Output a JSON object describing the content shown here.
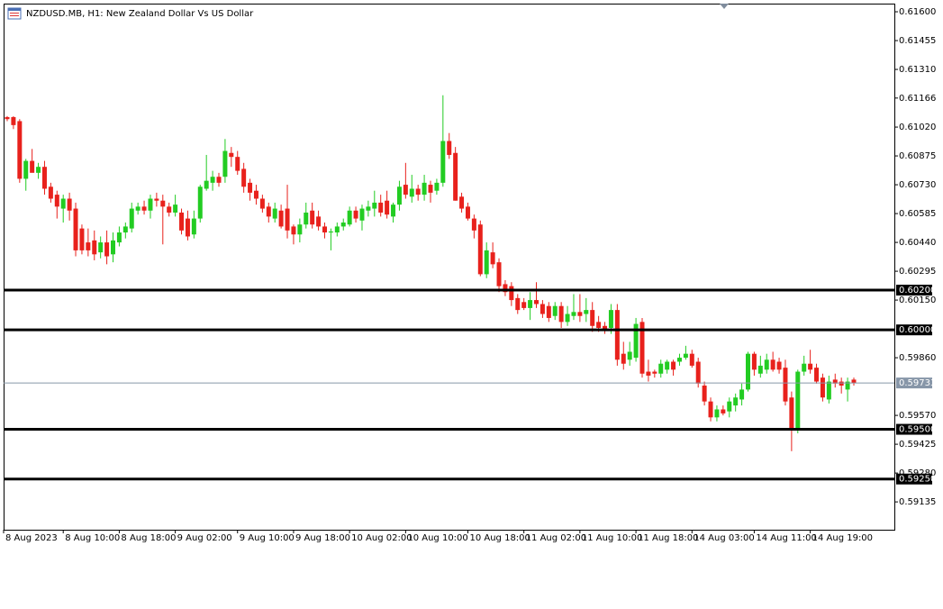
{
  "chart_data": {
    "type": "candlestick",
    "title": "NZDUSD.MB, H1:  New Zealand Dollar Vs US Dollar",
    "up_color": "#22cc22",
    "down_color": "#e8211c",
    "ylim": [
      0.58995,
      0.61641
    ],
    "yticks": [
      {
        "value": 0.616,
        "label": "0.61600"
      },
      {
        "value": 0.61455,
        "label": "0.61455"
      },
      {
        "value": 0.6131,
        "label": "0.61310"
      },
      {
        "value": 0.61166,
        "label": "0.61166"
      },
      {
        "value": 0.6102,
        "label": "0.61020"
      },
      {
        "value": 0.60875,
        "label": "0.60875"
      },
      {
        "value": 0.6073,
        "label": "0.60730"
      },
      {
        "value": 0.60585,
        "label": "0.60585"
      },
      {
        "value": 0.6044,
        "label": "0.60440"
      },
      {
        "value": 0.60295,
        "label": "0.60295"
      },
      {
        "value": 0.6015,
        "label": "0.60150"
      },
      {
        "value": 0.5986,
        "label": "0.59860"
      },
      {
        "value": 0.5957,
        "label": "0.59570"
      },
      {
        "value": 0.59425,
        "label": "0.59425"
      },
      {
        "value": 0.5928,
        "label": "0.59280"
      },
      {
        "value": 0.59135,
        "label": "0.59135"
      }
    ],
    "levels": [
      {
        "value": 0.602,
        "label": "0.60200"
      },
      {
        "value": 0.6,
        "label": "0.60000"
      },
      {
        "value": 0.595,
        "label": "0.59500"
      },
      {
        "value": 0.5925,
        "label": "0.59250"
      }
    ],
    "last_price": {
      "value": 0.59733,
      "label": "0.59733"
    },
    "categories": [
      "8 Aug 2023",
      null,
      null,
      null,
      null,
      null,
      null,
      null,
      null,
      "8 Aug 10:00",
      null,
      null,
      null,
      null,
      null,
      null,
      null,
      null,
      "8 Aug 18:00",
      null,
      null,
      null,
      null,
      null,
      null,
      null,
      null,
      "9 Aug 02:00",
      null,
      null,
      null,
      null,
      null,
      null,
      null,
      null,
      null,
      "9 Aug 10:00",
      null,
      null,
      null,
      null,
      null,
      null,
      null,
      null,
      "9 Aug 18:00",
      null,
      null,
      null,
      null,
      null,
      null,
      null,
      null,
      "10 Aug 02:00",
      null,
      null,
      null,
      null,
      null,
      null,
      null,
      null,
      "10 Aug 10:00",
      null,
      null,
      null,
      null,
      null,
      null,
      null,
      null,
      null,
      "10 Aug 18:00",
      null,
      null,
      null,
      null,
      null,
      null,
      null,
      null,
      "11 Aug 02:00",
      null,
      null,
      null,
      null,
      null,
      null,
      null,
      null,
      "11 Aug 10:00",
      null,
      null,
      null,
      null,
      null,
      null,
      null,
      null,
      "11 Aug 18:00",
      null,
      null,
      null,
      null,
      null,
      null,
      null,
      null,
      "14 Aug 03:00",
      null,
      null,
      null,
      null,
      null,
      null,
      null,
      null,
      null,
      "14 Aug 11:00",
      null,
      null,
      null,
      null,
      null,
      null,
      null,
      null,
      "14 Aug 19:00",
      null,
      null,
      null,
      null,
      null,
      null,
      null
    ],
    "candles": [
      [
        0.6107,
        0.61075,
        0.6105,
        0.6106
      ],
      [
        0.6107,
        0.61075,
        0.6101,
        0.6103
      ],
      [
        0.6105,
        0.6106,
        0.6074,
        0.6076
      ],
      [
        0.6076,
        0.6086,
        0.607,
        0.6085
      ],
      [
        0.6085,
        0.6091,
        0.608,
        0.6079
      ],
      [
        0.6079,
        0.6084,
        0.6076,
        0.6082
      ],
      [
        0.6082,
        0.6085,
        0.6068,
        0.6071
      ],
      [
        0.6072,
        0.6074,
        0.6064,
        0.6066
      ],
      [
        0.6068,
        0.607,
        0.6056,
        0.6062
      ],
      [
        0.6061,
        0.6068,
        0.6054,
        0.6066
      ],
      [
        0.6066,
        0.6069,
        0.6055,
        0.606
      ],
      [
        0.6061,
        0.6064,
        0.6037,
        0.604
      ],
      [
        0.6051,
        0.6053,
        0.6038,
        0.604
      ],
      [
        0.6044,
        0.6051,
        0.6037,
        0.604
      ],
      [
        0.6045,
        0.605,
        0.6035,
        0.6038
      ],
      [
        0.6039,
        0.6047,
        0.6036,
        0.6044
      ],
      [
        0.6044,
        0.605,
        0.6033,
        0.6037
      ],
      [
        0.6038,
        0.6049,
        0.6034,
        0.6045
      ],
      [
        0.6044,
        0.6052,
        0.6042,
        0.6049
      ],
      [
        0.6049,
        0.6054,
        0.6046,
        0.6052
      ],
      [
        0.6051,
        0.6064,
        0.6049,
        0.6061
      ],
      [
        0.606,
        0.6064,
        0.6058,
        0.6062
      ],
      [
        0.6062,
        0.6065,
        0.6058,
        0.606
      ],
      [
        0.606,
        0.6068,
        0.6056,
        0.6066
      ],
      [
        0.6066,
        0.6069,
        0.6062,
        0.6065
      ],
      [
        0.6065,
        0.6068,
        0.6043,
        0.6062
      ],
      [
        0.6062,
        0.6064,
        0.6057,
        0.6059
      ],
      [
        0.6059,
        0.6068,
        0.6057,
        0.6063
      ],
      [
        0.6059,
        0.6061,
        0.6048,
        0.605
      ],
      [
        0.6056,
        0.606,
        0.6045,
        0.6047
      ],
      [
        0.6048,
        0.606,
        0.6046,
        0.6056
      ],
      [
        0.6056,
        0.6073,
        0.6054,
        0.6072
      ],
      [
        0.6071,
        0.6088,
        0.607,
        0.6075
      ],
      [
        0.6074,
        0.608,
        0.607,
        0.6077
      ],
      [
        0.6077,
        0.6079,
        0.6072,
        0.6074
      ],
      [
        0.6077,
        0.6096,
        0.6074,
        0.609
      ],
      [
        0.6089,
        0.6092,
        0.6082,
        0.6087
      ],
      [
        0.6087,
        0.609,
        0.6078,
        0.608
      ],
      [
        0.6081,
        0.6084,
        0.6069,
        0.6072
      ],
      [
        0.6074,
        0.6076,
        0.6065,
        0.6069
      ],
      [
        0.607,
        0.6073,
        0.6063,
        0.6066
      ],
      [
        0.6066,
        0.6068,
        0.6059,
        0.6061
      ],
      [
        0.6062,
        0.6064,
        0.6054,
        0.6057
      ],
      [
        0.6056,
        0.6064,
        0.6054,
        0.6061
      ],
      [
        0.606,
        0.6063,
        0.6051,
        0.6052
      ],
      [
        0.6061,
        0.6073,
        0.6046,
        0.605
      ],
      [
        0.6052,
        0.6053,
        0.6043,
        0.6048
      ],
      [
        0.6048,
        0.6056,
        0.6044,
        0.6053
      ],
      [
        0.6053,
        0.6064,
        0.6051,
        0.6059
      ],
      [
        0.606,
        0.6064,
        0.6051,
        0.6053
      ],
      [
        0.6057,
        0.606,
        0.605,
        0.6052
      ],
      [
        0.6052,
        0.6054,
        0.6046,
        0.6049
      ],
      [
        0.6049,
        0.6051,
        0.604,
        0.60495
      ],
      [
        0.6049,
        0.6054,
        0.6047,
        0.6052
      ],
      [
        0.6052,
        0.6056,
        0.605,
        0.6054
      ],
      [
        0.6053,
        0.6062,
        0.6052,
        0.606
      ],
      [
        0.606,
        0.6062,
        0.6054,
        0.6056
      ],
      [
        0.6055,
        0.6063,
        0.605,
        0.6061
      ],
      [
        0.606,
        0.6065,
        0.6057,
        0.6062
      ],
      [
        0.6061,
        0.607,
        0.6057,
        0.6064
      ],
      [
        0.6064,
        0.6068,
        0.6057,
        0.6059
      ],
      [
        0.6065,
        0.607,
        0.6056,
        0.6058
      ],
      [
        0.6057,
        0.6064,
        0.6054,
        0.6063
      ],
      [
        0.6063,
        0.6075,
        0.606,
        0.6072
      ],
      [
        0.6073,
        0.6084,
        0.6066,
        0.6068
      ],
      [
        0.6067,
        0.6078,
        0.6064,
        0.6071
      ],
      [
        0.6071,
        0.6073,
        0.6065,
        0.6068
      ],
      [
        0.6068,
        0.6078,
        0.6065,
        0.6074
      ],
      [
        0.6073,
        0.6075,
        0.6064,
        0.6069
      ],
      [
        0.607,
        0.6076,
        0.6068,
        0.6074
      ],
      [
        0.6074,
        0.6118,
        0.6072,
        0.6095
      ],
      [
        0.6095,
        0.6099,
        0.6086,
        0.6088
      ],
      [
        0.6089,
        0.6092,
        0.6065,
        0.6065
      ],
      [
        0.6067,
        0.6069,
        0.6059,
        0.6061
      ],
      [
        0.6062,
        0.6064,
        0.6055,
        0.6056
      ],
      [
        0.6056,
        0.6058,
        0.6046,
        0.605
      ],
      [
        0.6053,
        0.6055,
        0.6027,
        0.6028
      ],
      [
        0.6028,
        0.6044,
        0.6026,
        0.604
      ],
      [
        0.6039,
        0.6044,
        0.6031,
        0.6033
      ],
      [
        0.6034,
        0.6036,
        0.6019,
        0.6022
      ],
      [
        0.6023,
        0.6025,
        0.6017,
        0.6019
      ],
      [
        0.6022,
        0.6024,
        0.6012,
        0.6015
      ],
      [
        0.6016,
        0.6018,
        0.6008,
        0.601
      ],
      [
        0.6014,
        0.6016,
        0.601,
        0.6011
      ],
      [
        0.6011,
        0.6019,
        0.6005,
        0.6015
      ],
      [
        0.6015,
        0.6024,
        0.6011,
        0.6013
      ],
      [
        0.6013,
        0.6015,
        0.6006,
        0.6008
      ],
      [
        0.6012,
        0.6014,
        0.6004,
        0.6006
      ],
      [
        0.6007,
        0.6014,
        0.6005,
        0.6012
      ],
      [
        0.6012,
        0.6014,
        0.6001,
        0.6004
      ],
      [
        0.6004,
        0.6012,
        0.6002,
        0.6008
      ],
      [
        0.6007,
        0.6018,
        0.6005,
        0.6009
      ],
      [
        0.6009,
        0.6018,
        0.6004,
        0.6007
      ],
      [
        0.6008,
        0.6016,
        0.6004,
        0.601
      ],
      [
        0.601,
        0.6014,
        0.5999,
        0.6002
      ],
      [
        0.6004,
        0.6007,
        0.5999,
        0.6001
      ],
      [
        0.6002,
        0.6004,
        0.5998,
        0.6
      ],
      [
        0.6001,
        0.6013,
        0.5998,
        0.601
      ],
      [
        0.601,
        0.6013,
        0.5982,
        0.5985
      ],
      [
        0.5988,
        0.5994,
        0.598,
        0.5983
      ],
      [
        0.5985,
        0.5994,
        0.5982,
        0.5989
      ],
      [
        0.5986,
        0.6006,
        0.5984,
        0.6003
      ],
      [
        0.6004,
        0.6006,
        0.5976,
        0.5978
      ],
      [
        0.5979,
        0.5985,
        0.5974,
        0.5977
      ],
      [
        0.5979,
        0.598,
        0.5976,
        0.5978
      ],
      [
        0.5978,
        0.5985,
        0.5976,
        0.5983
      ],
      [
        0.598,
        0.5985,
        0.5978,
        0.5984
      ],
      [
        0.5984,
        0.5985,
        0.5977,
        0.598
      ],
      [
        0.5984,
        0.5988,
        0.5982,
        0.5986
      ],
      [
        0.5986,
        0.5992,
        0.5985,
        0.5988
      ],
      [
        0.5988,
        0.599,
        0.5981,
        0.5982
      ],
      [
        0.5984,
        0.5986,
        0.5971,
        0.5973
      ],
      [
        0.5972,
        0.5974,
        0.5962,
        0.5964
      ],
      [
        0.5964,
        0.5966,
        0.5954,
        0.5956
      ],
      [
        0.5956,
        0.5962,
        0.5954,
        0.596
      ],
      [
        0.596,
        0.5962,
        0.5957,
        0.5958
      ],
      [
        0.5959,
        0.5966,
        0.5956,
        0.5964
      ],
      [
        0.5962,
        0.5968,
        0.5959,
        0.5966
      ],
      [
        0.5965,
        0.5973,
        0.5962,
        0.597
      ],
      [
        0.597,
        0.5989,
        0.5969,
        0.5988
      ],
      [
        0.5988,
        0.5989,
        0.5977,
        0.598
      ],
      [
        0.5978,
        0.5987,
        0.5976,
        0.5982
      ],
      [
        0.598,
        0.5988,
        0.5978,
        0.5985
      ],
      [
        0.5985,
        0.5989,
        0.5979,
        0.598
      ],
      [
        0.5984,
        0.5986,
        0.5978,
        0.598
      ],
      [
        0.5981,
        0.5985,
        0.5962,
        0.5964
      ],
      [
        0.5966,
        0.5969,
        0.5939,
        0.595
      ],
      [
        0.595,
        0.598,
        0.5948,
        0.5979
      ],
      [
        0.5979,
        0.5987,
        0.5977,
        0.5983
      ],
      [
        0.5983,
        0.599,
        0.5978,
        0.598
      ],
      [
        0.5981,
        0.5983,
        0.5973,
        0.5974
      ],
      [
        0.5976,
        0.5978,
        0.5964,
        0.5966
      ],
      [
        0.5965,
        0.5977,
        0.5963,
        0.5974
      ],
      [
        0.5975,
        0.5978,
        0.5971,
        0.5973
      ],
      [
        0.5974,
        0.5976,
        0.5968,
        0.5972
      ],
      [
        0.597,
        0.5976,
        0.5964,
        0.5974
      ],
      [
        0.5975,
        0.5976,
        0.5972,
        0.59733
      ]
    ]
  }
}
